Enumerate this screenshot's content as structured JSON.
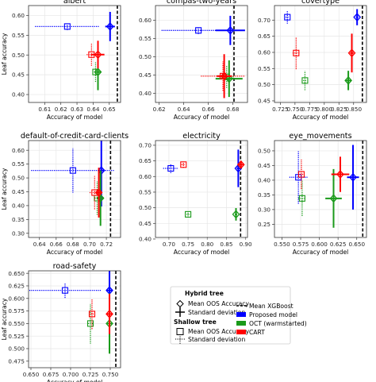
{
  "colors": {
    "proposed": "#0000ff",
    "oct": "#1a9a1a",
    "cart": "#ff0000",
    "xgboost": "#000000"
  },
  "legend": {
    "hybrid_title": "Hybrid tree",
    "hybrid_mean": "Mean OOS Accuracy",
    "hybrid_std": "Standard deviation",
    "shallow_title": "Shallow tree",
    "shallow_mean": "Mean OOS Accuracy",
    "shallow_std": "Standard deviation",
    "xgb": "Mean XGBoost",
    "proposed": "Proposed model",
    "oct": "OCT (warmstarted)",
    "cart": "CART"
  },
  "chart_data": [
    {
      "type": "scatter",
      "title": "albert",
      "xlabel": "Accuracy of model",
      "ylabel": "Leaf accuracy",
      "xlim": [
        0.6,
        0.657
      ],
      "ylim": [
        0.38,
        0.625
      ],
      "xticks": [
        0.61,
        0.62,
        0.63,
        0.64,
        0.65
      ],
      "xtick_labels": [
        "0.61",
        "0.62",
        "0.63",
        "0.64",
        "0.65"
      ],
      "yticks": [
        0.4,
        0.45,
        0.5,
        0.55,
        0.6
      ],
      "ytick_labels": [
        "0.40",
        "0.45",
        "0.50",
        "0.55",
        "0.60"
      ],
      "xgboost": 0.655,
      "series": [
        {
          "model": "proposed",
          "hybrid": {
            "x": 0.6505,
            "xerr": 0.003,
            "y": 0.572,
            "yerr": 0.037
          },
          "shallow": {
            "x": 0.624,
            "xerr": 0.02,
            "y": 0.572,
            "yerr": 0.009
          }
        },
        {
          "model": "oct",
          "hybrid": {
            "x": 0.643,
            "xerr": 0.0015,
            "y": 0.457,
            "yerr": 0.046
          },
          "shallow": {
            "x": 0.6415,
            "xerr": 0.001,
            "y": 0.457,
            "yerr": 0.025
          }
        },
        {
          "model": "cart",
          "hybrid": {
            "x": 0.643,
            "xerr": 0.004,
            "y": 0.501,
            "yerr": 0.035
          },
          "shallow": {
            "x": 0.639,
            "xerr": 0.003,
            "y": 0.501,
            "yerr": 0.028
          }
        }
      ]
    },
    {
      "type": "scatter",
      "title": "compas-two-years",
      "xlabel": "Accuracy of model",
      "ylabel": "",
      "xlim": [
        0.617,
        0.692
      ],
      "ylim": [
        0.375,
        0.64
      ],
      "xticks": [
        0.62,
        0.64,
        0.66,
        0.68
      ],
      "xtick_labels": [
        "0.62",
        "0.64",
        "0.66",
        "0.68"
      ],
      "yticks": [
        0.4,
        0.45,
        0.5,
        0.55,
        0.6
      ],
      "ytick_labels": [
        "0.40",
        "0.45",
        "0.50",
        "0.55",
        "0.60"
      ],
      "xgboost": 0.681,
      "series": [
        {
          "model": "proposed",
          "hybrid": {
            "x": 0.678,
            "xerr": 0.012,
            "y": 0.572,
            "yerr": 0.04
          },
          "shallow": {
            "x": 0.652,
            "xerr": 0.03,
            "y": 0.572,
            "yerr": 0.01
          }
        },
        {
          "model": "oct",
          "hybrid": {
            "x": 0.677,
            "xerr": 0.011,
            "y": 0.44,
            "yerr": 0.05
          },
          "shallow": {
            "x": 0.675,
            "xerr": 0.006,
            "y": 0.445,
            "yerr": 0.03
          }
        },
        {
          "model": "cart",
          "hybrid": {
            "x": 0.673,
            "xerr": 0.006,
            "y": 0.447,
            "yerr": 0.06
          },
          "shallow": {
            "x": 0.672,
            "xerr": 0.018,
            "y": 0.447,
            "yerr": 0.04
          }
        }
      ]
    },
    {
      "type": "scatter",
      "title": "covertype",
      "xlabel": "Accuracy of model",
      "ylabel": "",
      "xlim": [
        0.715,
        0.872
      ],
      "ylim": [
        0.445,
        0.745
      ],
      "xticks": [
        0.725,
        0.75,
        0.775,
        0.8,
        0.825,
        0.85
      ],
      "xtick_labels": [
        "0.725",
        "0.750",
        "0.775",
        "0.800",
        "0.825",
        "0.850"
      ],
      "yticks": [
        0.45,
        0.5,
        0.55,
        0.6,
        0.65,
        0.7
      ],
      "ytick_labels": [
        "0.45",
        "0.50",
        "0.55",
        "0.60",
        "0.65",
        "0.70"
      ],
      "xgboost": 0.865,
      "series": [
        {
          "model": "proposed",
          "hybrid": {
            "x": 0.856,
            "xerr": 0.002,
            "y": 0.709,
            "yerr": 0.025
          },
          "shallow": {
            "x": 0.737,
            "xerr": 0.003,
            "y": 0.709,
            "yerr": 0.02
          }
        },
        {
          "model": "oct",
          "hybrid": {
            "x": 0.841,
            "xerr": 0.005,
            "y": 0.513,
            "yerr": 0.03
          },
          "shallow": {
            "x": 0.767,
            "xerr": 0.003,
            "y": 0.513,
            "yerr": 0.03
          }
        },
        {
          "model": "cart",
          "hybrid": {
            "x": 0.847,
            "xerr": 0.003,
            "y": 0.598,
            "yerr": 0.06
          },
          "shallow": {
            "x": 0.752,
            "xerr": 0.006,
            "y": 0.598,
            "yerr": 0.05
          }
        }
      ]
    },
    {
      "type": "scatter",
      "title": "default-of-credit-card-clients",
      "xlabel": "Accuracy of model",
      "ylabel": "Leaf accuracy",
      "xlim": [
        0.627,
        0.737
      ],
      "ylim": [
        0.285,
        0.635
      ],
      "xticks": [
        0.64,
        0.66,
        0.68,
        0.7,
        0.72
      ],
      "xtick_labels": [
        "0.64",
        "0.66",
        "0.68",
        "0.70",
        "0.72"
      ],
      "yticks": [
        0.3,
        0.35,
        0.4,
        0.45,
        0.5,
        0.55,
        0.6
      ],
      "ytick_labels": [
        "0.30",
        "0.35",
        "0.40",
        "0.45",
        "0.50",
        "0.55",
        "0.60"
      ],
      "xgboost": 0.725,
      "series": [
        {
          "model": "proposed",
          "hybrid": {
            "x": 0.714,
            "xerr": 0.004,
            "y": 0.527,
            "yerr": 0.13
          },
          "shallow": {
            "x": 0.68,
            "xerr": 0.05,
            "y": 0.527,
            "yerr": 0.08
          }
        },
        {
          "model": "oct",
          "hybrid": {
            "x": 0.713,
            "xerr": 0.004,
            "y": 0.427,
            "yerr": 0.1
          },
          "shallow": {
            "x": 0.709,
            "xerr": 0.003,
            "y": 0.427,
            "yerr": 0.06
          }
        },
        {
          "model": "cart",
          "hybrid": {
            "x": 0.711,
            "xerr": 0.003,
            "y": 0.447,
            "yerr": 0.09
          },
          "shallow": {
            "x": 0.706,
            "xerr": 0.006,
            "y": 0.447,
            "yerr": 0.06
          }
        }
      ]
    },
    {
      "type": "scatter",
      "title": "electricity",
      "xlabel": "Accuracy of model",
      "ylabel": "",
      "xlim": [
        0.665,
        0.905
      ],
      "ylim": [
        0.405,
        0.715
      ],
      "xticks": [
        0.7,
        0.75,
        0.8,
        0.85,
        0.9
      ],
      "xtick_labels": [
        "0.70",
        "0.75",
        "0.80",
        "0.85",
        "0.90"
      ],
      "yticks": [
        0.4,
        0.45,
        0.5,
        0.55,
        0.6,
        0.65,
        0.7
      ],
      "ytick_labels": [
        "0.40",
        "0.45",
        "0.50",
        "0.55",
        "0.60",
        "0.65",
        "0.70"
      ],
      "xgboost": 0.887,
      "series": [
        {
          "model": "proposed",
          "hybrid": {
            "x": 0.881,
            "xerr": 0.004,
            "y": 0.626,
            "yerr": 0.06
          },
          "shallow": {
            "x": 0.705,
            "xerr": 0.02,
            "y": 0.626,
            "yerr": 0.015
          }
        },
        {
          "model": "oct",
          "hybrid": {
            "x": 0.875,
            "xerr": 0.003,
            "y": 0.479,
            "yerr": 0.02
          },
          "shallow": {
            "x": 0.75,
            "xerr": 0.004,
            "y": 0.479,
            "yerr": 0.01
          }
        },
        {
          "model": "cart",
          "hybrid": {
            "x": 0.888,
            "xerr": 0.006,
            "y": 0.638,
            "yerr": 0.012
          },
          "shallow": {
            "x": 0.738,
            "xerr": 0.005,
            "y": 0.638,
            "yerr": 0.01
          }
        }
      ]
    },
    {
      "type": "scatter",
      "title": "eye_movements",
      "xlabel": "Accuracy of model",
      "ylabel": "",
      "xlim": [
        0.54,
        0.663
      ],
      "ylim": [
        0.205,
        0.535
      ],
      "xticks": [
        0.55,
        0.575,
        0.6,
        0.625,
        0.65
      ],
      "xtick_labels": [
        "0.550",
        "0.575",
        "0.600",
        "0.625",
        "0.650"
      ],
      "yticks": [
        0.25,
        0.3,
        0.35,
        0.4,
        0.45,
        0.5
      ],
      "ytick_labels": [
        "0.25",
        "0.30",
        "0.35",
        "0.40",
        "0.45",
        "0.50"
      ],
      "xgboost": 0.658,
      "series": [
        {
          "model": "proposed",
          "hybrid": {
            "x": 0.645,
            "xerr": 0.008,
            "y": 0.41,
            "yerr": 0.11
          },
          "shallow": {
            "x": 0.572,
            "xerr": 0.012,
            "y": 0.41,
            "yerr": 0.09
          }
        },
        {
          "model": "oct",
          "hybrid": {
            "x": 0.619,
            "xerr": 0.011,
            "y": 0.338,
            "yerr": 0.1
          },
          "shallow": {
            "x": 0.577,
            "xerr": 0.005,
            "y": 0.338,
            "yerr": 0.06
          }
        },
        {
          "model": "cart",
          "hybrid": {
            "x": 0.628,
            "xerr": 0.012,
            "y": 0.42,
            "yerr": 0.06
          },
          "shallow": {
            "x": 0.576,
            "xerr": 0.004,
            "y": 0.42,
            "yerr": 0.05
          }
        }
      ]
    },
    {
      "type": "scatter",
      "title": "road-safety",
      "xlabel": "Accuracy of model",
      "ylabel": "Leaf accuracy",
      "xlim": [
        0.647,
        0.763
      ],
      "ylim": [
        0.462,
        0.655
      ],
      "xticks": [
        0.65,
        0.675,
        0.7,
        0.725,
        0.75
      ],
      "xtick_labels": [
        "0.650",
        "0.675",
        "0.700",
        "0.725",
        "0.750"
      ],
      "yticks": [
        0.475,
        0.5,
        0.525,
        0.55,
        0.575,
        0.6,
        0.625,
        0.65
      ],
      "ytick_labels": [
        "0.475",
        "0.500",
        "0.525",
        "0.550",
        "0.575",
        "0.600",
        "0.625",
        "0.650"
      ],
      "xgboost": 0.757,
      "series": [
        {
          "model": "proposed",
          "hybrid": {
            "x": 0.749,
            "xerr": 0.004,
            "y": 0.616,
            "yerr": 0.04
          },
          "shallow": {
            "x": 0.693,
            "xerr": 0.045,
            "y": 0.616,
            "yerr": 0.015
          }
        },
        {
          "model": "oct",
          "hybrid": {
            "x": 0.749,
            "xerr": 0.003,
            "y": 0.55,
            "yerr": 0.06
          },
          "shallow": {
            "x": 0.725,
            "xerr": 0.003,
            "y": 0.55,
            "yerr": 0.04
          }
        },
        {
          "model": "cart",
          "hybrid": {
            "x": 0.749,
            "xerr": 0.003,
            "y": 0.569,
            "yerr": 0.04
          },
          "shallow": {
            "x": 0.727,
            "xerr": 0.004,
            "y": 0.569,
            "yerr": 0.03
          }
        }
      ]
    }
  ]
}
